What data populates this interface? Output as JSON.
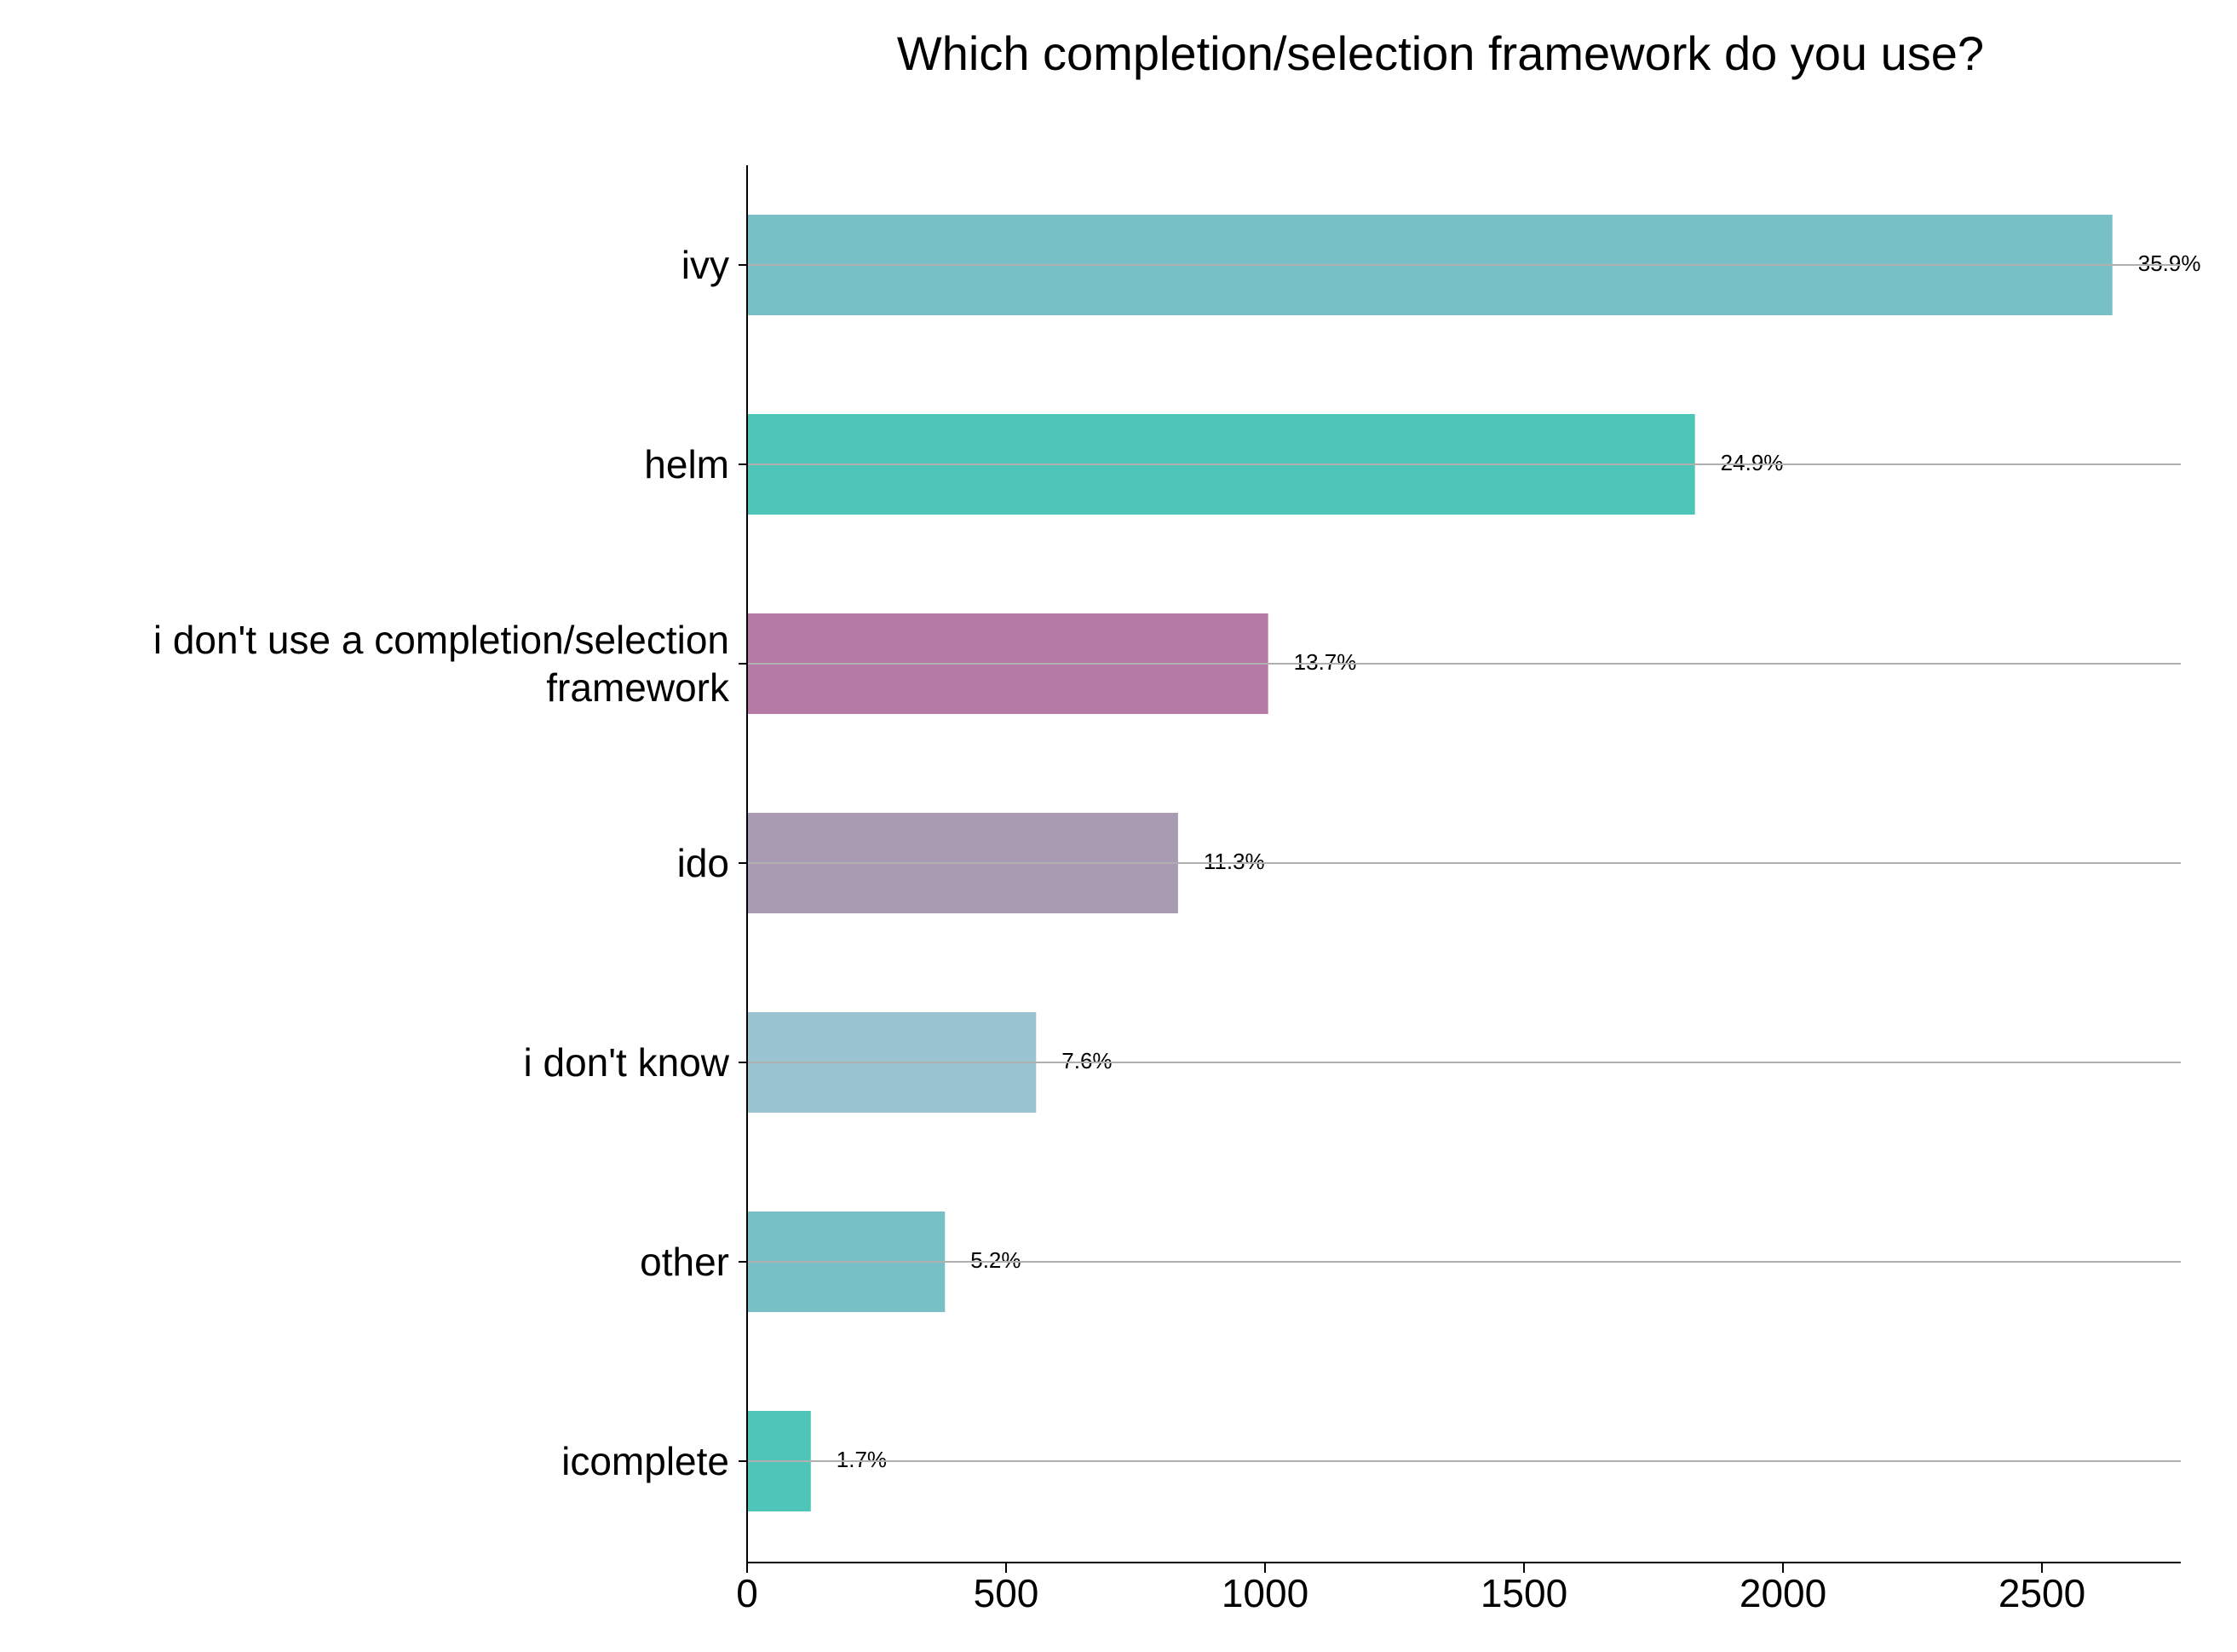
{
  "chart_data": {
    "type": "barh",
    "title": "Which completion/selection framework do you use?",
    "categories": [
      "ivy",
      "helm",
      "i don't use a completion/selection\nframework",
      "ido",
      "i don't know",
      "other",
      "icomplete"
    ],
    "values": [
      2636,
      1830,
      1006,
      832,
      558,
      382,
      123
    ],
    "percent_labels": [
      "35.9%",
      "24.9%",
      "13.7%",
      "11.3%",
      "7.6%",
      "5.2%",
      "1.7%"
    ],
    "colors": [
      "#76c0c6",
      "#4dc6b8",
      "#b57aa5",
      "#a89bb2",
      "#9bc4d1",
      "#76c0c6",
      "#4dc6b8"
    ],
    "xlim": [
      0,
      2768
    ],
    "xticks": [
      0,
      500,
      1000,
      1500,
      2000,
      2500
    ],
    "category_lines": true
  }
}
